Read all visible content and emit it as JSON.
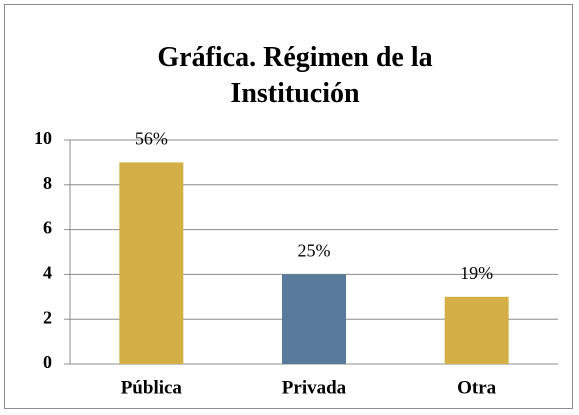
{
  "chart_data": {
    "type": "bar",
    "title": "Gráfica. Régimen de la Institución",
    "categories": [
      "Pública",
      "Privada",
      "Otra"
    ],
    "values": [
      9,
      4,
      3
    ],
    "value_labels": [
      "56%",
      "25%",
      "19%"
    ],
    "colors": [
      "#d4af45",
      "#587a9c",
      "#d4af45"
    ],
    "ylim": [
      0,
      10
    ],
    "yticks": [
      0,
      2,
      4,
      6,
      8,
      10
    ],
    "grid": true
  }
}
